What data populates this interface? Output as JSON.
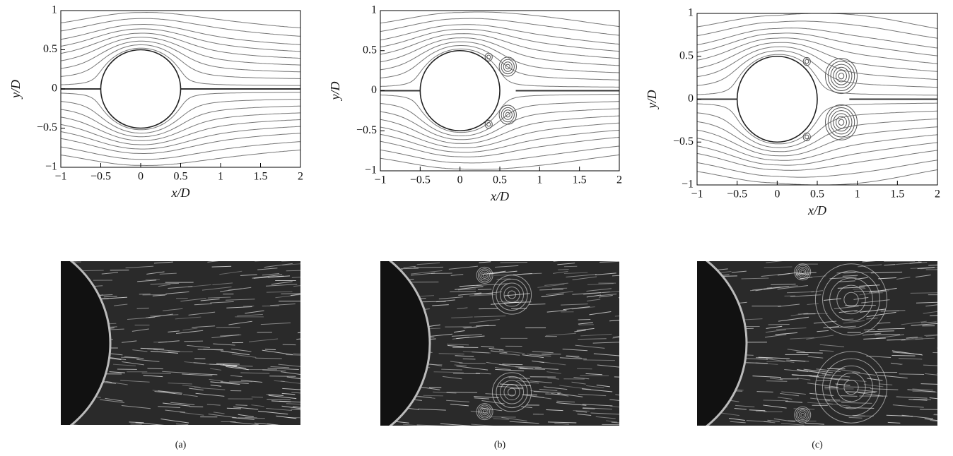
{
  "chart_data": [
    {
      "type": "streamline",
      "x_label": "x/D",
      "y_label": "y/D",
      "caption": "(a)",
      "xlim": [
        -1,
        2
      ],
      "ylim": [
        -1,
        1
      ],
      "xticks": [
        {
          "value": -1,
          "label": "−1"
        },
        {
          "value": -0.5,
          "label": "−0.5"
        },
        0,
        0.5,
        1,
        1.5,
        2
      ],
      "yticks": [
        {
          "value": -1,
          "label": "−1"
        },
        {
          "value": -0.5,
          "label": "−0.5"
        },
        0,
        0.5,
        1
      ]
    },
    {
      "type": "streamline",
      "x_label": "x/D",
      "y_label": "y/D",
      "caption": "(b)",
      "xlim": [
        -1,
        2
      ],
      "ylim": [
        -1,
        1
      ],
      "xticks": [
        {
          "value": -1,
          "label": "−1"
        },
        {
          "value": -0.5,
          "label": "−0.5"
        },
        0,
        0.5,
        1,
        1.5,
        2
      ],
      "yticks": [
        {
          "value": -1,
          "label": "−1"
        },
        {
          "value": -0.5,
          "label": "−0.5"
        },
        0,
        0.5,
        1
      ]
    },
    {
      "type": "streamline",
      "x_label": "x/D",
      "y_label": "y/D",
      "caption": "(c)",
      "xlim": [
        -1,
        2
      ],
      "ylim": [
        -1,
        1
      ],
      "xticks": [
        {
          "value": -1,
          "label": "−1"
        },
        {
          "value": -0.5,
          "label": "−0.5"
        },
        0,
        0.5,
        1,
        1.5,
        2
      ],
      "yticks": [
        {
          "value": -1,
          "label": "−1"
        },
        {
          "value": -0.5,
          "label": "−0.5"
        },
        0,
        0.5,
        1
      ]
    }
  ]
}
